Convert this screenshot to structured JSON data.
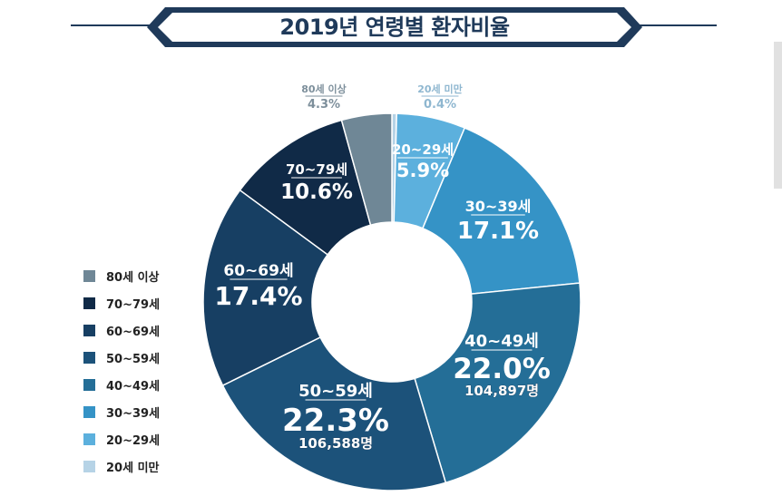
{
  "title": "2019년 연령별 환자비율",
  "chart_data": {
    "type": "pie",
    "title": "2019년 연령별 환자비율",
    "donut": true,
    "legend_position": "left",
    "series": [
      {
        "name": "20세 미만",
        "value": 0.4,
        "value_label": "0.4%",
        "color": "#b6d3e6",
        "sub": ""
      },
      {
        "name": "20~29세",
        "value": 5.9,
        "value_label": "5.9%",
        "color": "#5cb0dd",
        "sub": ""
      },
      {
        "name": "30~39세",
        "value": 17.1,
        "value_label": "17.1%",
        "color": "#3593c6",
        "sub": ""
      },
      {
        "name": "40~49세",
        "value": 22.0,
        "value_label": "22.0%",
        "color": "#246e97",
        "sub": "104,897명"
      },
      {
        "name": "50~59세",
        "value": 22.3,
        "value_label": "22.3%",
        "color": "#1c527a",
        "sub": "106,588명"
      },
      {
        "name": "60~69세",
        "value": 17.4,
        "value_label": "17.4%",
        "color": "#173f63",
        "sub": ""
      },
      {
        "name": "70~79세",
        "value": 10.6,
        "value_label": "10.6%",
        "color": "#102a47",
        "sub": ""
      },
      {
        "name": "80세 이상",
        "value": 4.3,
        "value_label": "4.3%",
        "color": "#6f8796",
        "sub": ""
      }
    ],
    "legend_order": [
      "80세 이상",
      "70~79세",
      "60~69세",
      "50~59세",
      "40~49세",
      "30~39세",
      "20~29세",
      "20세 미만"
    ]
  }
}
